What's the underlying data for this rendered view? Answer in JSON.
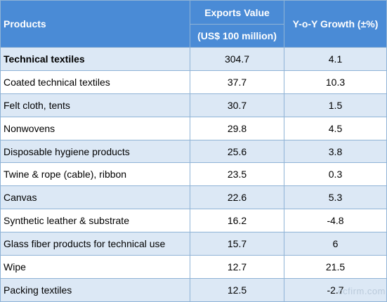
{
  "header": {
    "products": "Products",
    "exports_value": "Exports Value",
    "exports_unit": "(US$ 100 million)",
    "yoy_growth": "Y-o-Y Growth (±%)"
  },
  "rows": [
    {
      "product": "Technical textiles",
      "value": "304.7",
      "growth": "4.1"
    },
    {
      "product": "Coated technical textiles",
      "value": "37.7",
      "growth": "10.3"
    },
    {
      "product": "Felt cloth, tents",
      "value": "30.7",
      "growth": "1.5"
    },
    {
      "product": "Nonwovens",
      "value": "29.8",
      "growth": "4.5"
    },
    {
      "product": "Disposable hygiene products",
      "value": "25.6",
      "growth": "3.8"
    },
    {
      "product": "Twine & rope (cable), ribbon",
      "value": "23.5",
      "growth": "0.3"
    },
    {
      "product": "Canvas",
      "value": "22.6",
      "growth": "5.3"
    },
    {
      "product": "Synthetic leather & substrate",
      "value": "16.2",
      "growth": "-4.8"
    },
    {
      "product": "Glass fiber products for technical use",
      "value": "15.7",
      "growth": "6"
    },
    {
      "product": "Wipe",
      "value": "12.7",
      "growth": "21.5"
    },
    {
      "product": "Packing textiles",
      "value": "12.5",
      "growth": "-2.7"
    }
  ],
  "watermark": "ccfirm.com"
}
